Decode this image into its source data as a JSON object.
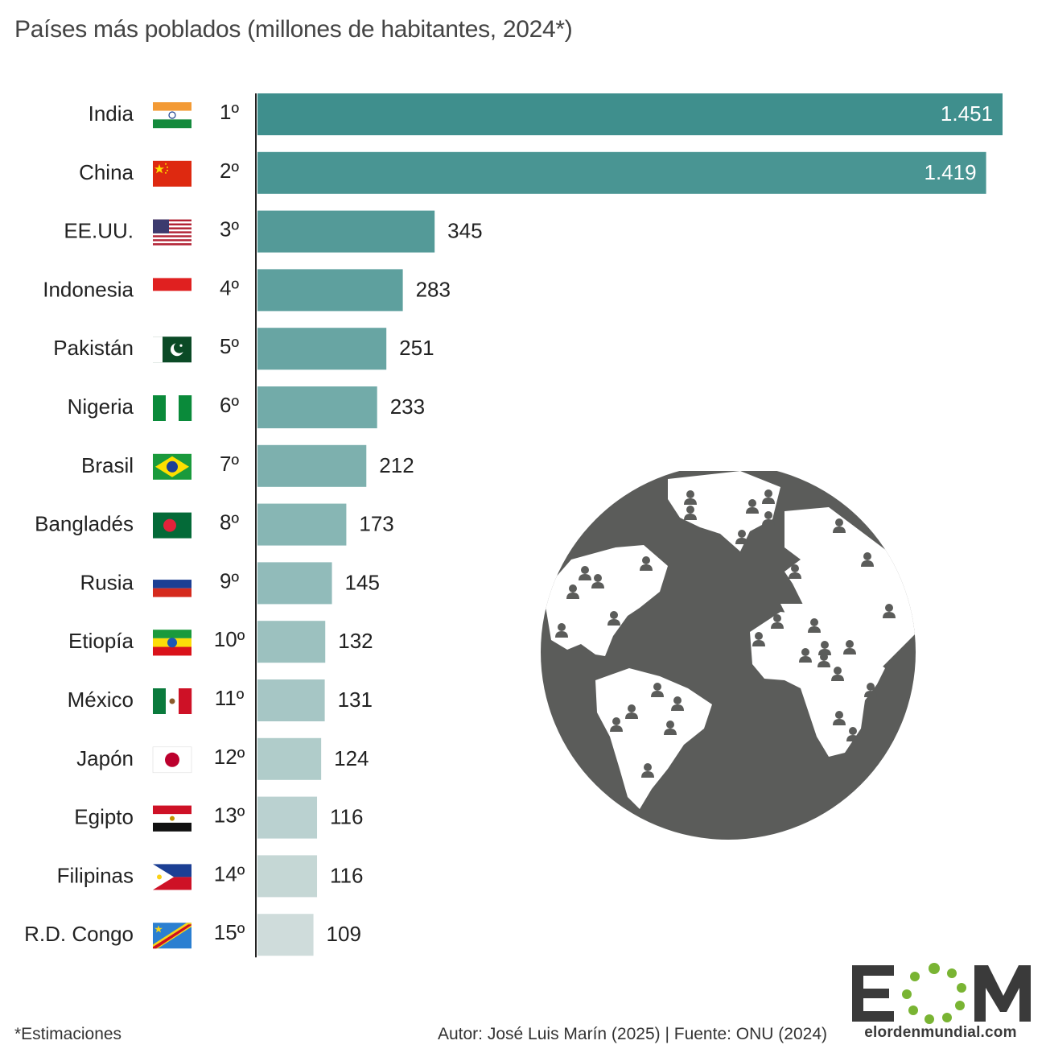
{
  "title": "Países más poblados (millones de habitantes, 2024*)",
  "footnote": "*Estimaciones",
  "credits": "Autor: José Luis Marín (2025) | Fuente: ONU (2024)",
  "logo": {
    "mark": "EOM",
    "url_text": "elordenmundial.com"
  },
  "icons": {
    "flags": "country-flag-icon",
    "globe": "globe-population-icon",
    "logo": "eom-logo-icon"
  },
  "colors": {
    "bar_dark": "#3f8f8d",
    "bar_light": "#cfdcdb",
    "globe": "#5b5c5a",
    "logo_green": "#79b433"
  },
  "chart_data": {
    "type": "bar",
    "orientation": "horizontal",
    "title": "Países más poblados (millones de habitantes, 2024*)",
    "categories": [
      "India",
      "China",
      "EE.UU.",
      "Indonesia",
      "Pakistán",
      "Nigeria",
      "Brasil",
      "Bangladés",
      "Rusia",
      "Etiopía",
      "México",
      "Japón",
      "Egipto",
      "Filipinas",
      "R.D. Congo"
    ],
    "ranks": [
      "1º",
      "2º",
      "3º",
      "4º",
      "5º",
      "6º",
      "7º",
      "8º",
      "9º",
      "10º",
      "11º",
      "12º",
      "13º",
      "14º",
      "15º"
    ],
    "values": [
      1451,
      1419,
      345,
      283,
      251,
      233,
      212,
      173,
      145,
      132,
      131,
      124,
      116,
      116,
      109
    ],
    "value_labels": [
      "1.451",
      "1.419",
      "345",
      "283",
      "251",
      "233",
      "212",
      "173",
      "145",
      "132",
      "131",
      "124",
      "116",
      "116",
      "109"
    ],
    "flags": [
      "india",
      "china",
      "usa",
      "indonesia",
      "pakistan",
      "nigeria",
      "brazil",
      "bangladesh",
      "russia",
      "ethiopia",
      "mexico",
      "japan",
      "egypt",
      "philippines",
      "drcongo"
    ],
    "xlim": [
      0,
      1451
    ],
    "grid": false,
    "legend": "none"
  }
}
